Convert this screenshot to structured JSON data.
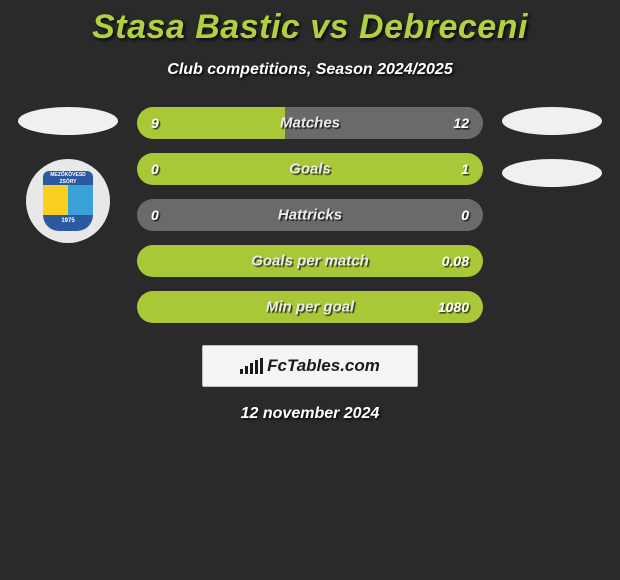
{
  "title": "Stasa Bastic vs Debreceni",
  "subtitle": "Club competitions, Season 2024/2025",
  "date": "12 november 2024",
  "footer_brand": "FcTables.com",
  "crest": {
    "top_text": "MEZŐKÖVESD ZSÓRY",
    "bottom_text": "1975"
  },
  "colors": {
    "accent_green": "#a8c838",
    "neutral_gray": "#6a6a6a",
    "bg": "#2a2a2a"
  },
  "rows": [
    {
      "label": "Matches",
      "left_val": "9",
      "right_val": "12",
      "left_pct": 42.8,
      "left_color": "#a8c838",
      "right_color": "#6a6a6a"
    },
    {
      "label": "Goals",
      "left_val": "0",
      "right_val": "1",
      "left_pct": 0,
      "left_color": "#a8c838",
      "right_color": "#a8c838"
    },
    {
      "label": "Hattricks",
      "left_val": "0",
      "right_val": "0",
      "left_pct": 0,
      "left_color": "#6a6a6a",
      "right_color": "#6a6a6a"
    },
    {
      "label": "Goals per match",
      "left_val": "",
      "right_val": "0.08",
      "left_pct": 0,
      "left_color": "#a8c838",
      "right_color": "#a8c838"
    },
    {
      "label": "Min per goal",
      "left_val": "",
      "right_val": "1080",
      "left_pct": 0,
      "left_color": "#a8c838",
      "right_color": "#a8c838"
    }
  ]
}
